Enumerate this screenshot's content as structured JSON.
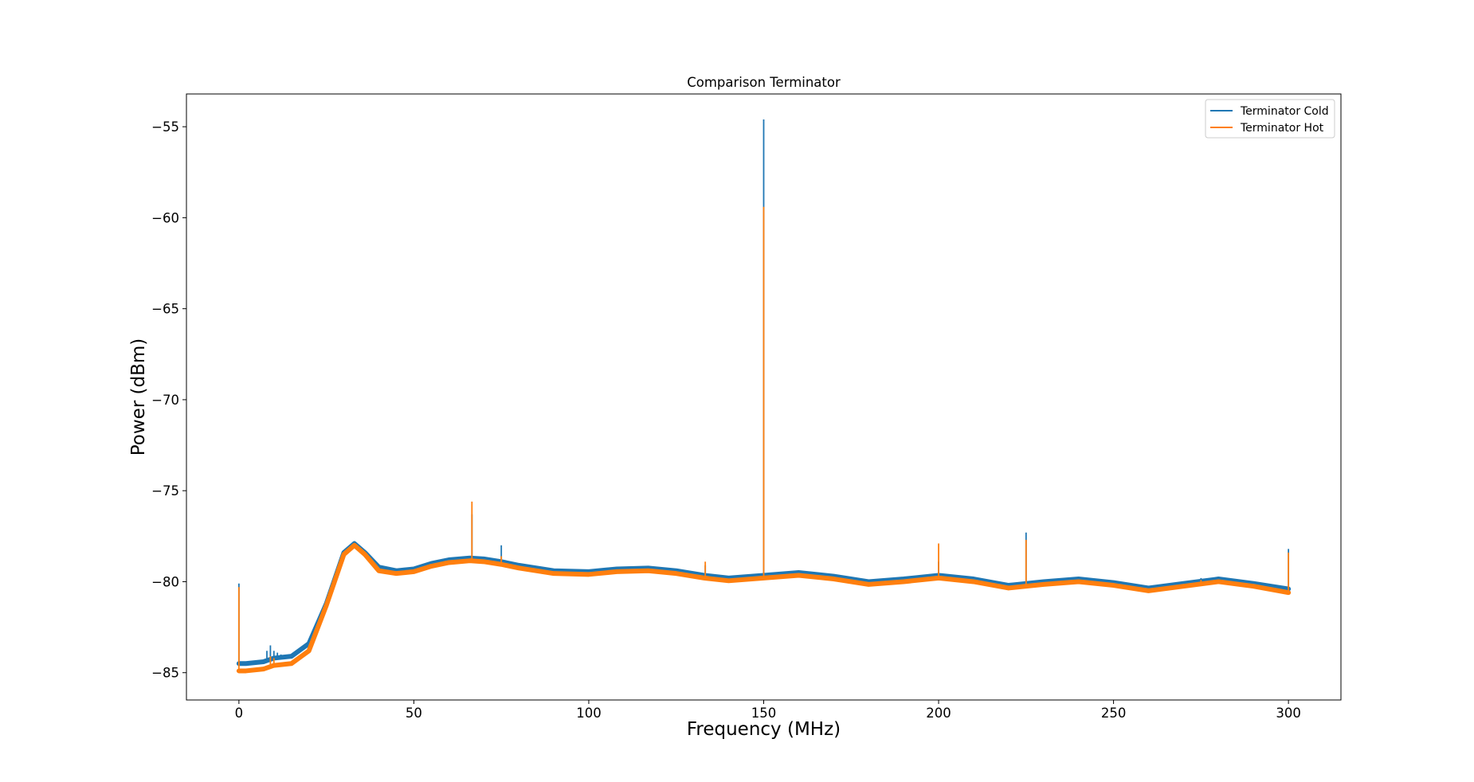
{
  "chart_data": {
    "type": "line",
    "title": "Comparison Terminator",
    "xlabel": "Frequency (MHz)",
    "ylabel": "Power (dBm)",
    "xlim": [
      -15,
      315
    ],
    "ylim": [
      -86.5,
      -53.2
    ],
    "xticks": [
      0,
      50,
      100,
      150,
      200,
      250,
      300
    ],
    "xtick_labels": [
      "0",
      "50",
      "100",
      "150",
      "200",
      "250",
      "300"
    ],
    "yticks": [
      -55,
      -60,
      -65,
      -70,
      -75,
      -80,
      -85
    ],
    "ytick_labels": [
      "−55",
      "−60",
      "−65",
      "−70",
      "−75",
      "−80",
      "−85"
    ],
    "grid": false,
    "legend_position": "top-right",
    "series": [
      {
        "name": "Terminator Cold",
        "color": "#1f77b4",
        "baseline": {
          "x": [
            0,
            2,
            7,
            10,
            15,
            20,
            25,
            30,
            33,
            36,
            40,
            45,
            50,
            55,
            60,
            66,
            70,
            75,
            80,
            90,
            100,
            108,
            117,
            125,
            133,
            140,
            150,
            160,
            170,
            180,
            190,
            200,
            210,
            220,
            230,
            240,
            250,
            260,
            270,
            280,
            290,
            300
          ],
          "y": [
            -84.5,
            -84.5,
            -84.4,
            -84.2,
            -84.1,
            -83.4,
            -81.2,
            -78.4,
            -77.9,
            -78.4,
            -79.2,
            -79.4,
            -79.3,
            -79.0,
            -78.8,
            -78.7,
            -78.75,
            -78.9,
            -79.1,
            -79.4,
            -79.45,
            -79.3,
            -79.25,
            -79.4,
            -79.65,
            -79.8,
            -79.65,
            -79.5,
            -79.7,
            -80.0,
            -79.85,
            -79.65,
            -79.85,
            -80.2,
            -80.0,
            -79.85,
            -80.05,
            -80.35,
            -80.1,
            -79.85,
            -80.1,
            -80.4
          ]
        },
        "spikes": [
          {
            "x": 0,
            "y": -80.1
          },
          {
            "x": 8,
            "y": -83.8
          },
          {
            "x": 9,
            "y": -83.5
          },
          {
            "x": 10,
            "y": -83.8
          },
          {
            "x": 11,
            "y": -83.9
          },
          {
            "x": 12,
            "y": -84.0
          },
          {
            "x": 66.6,
            "y": -76.3
          },
          {
            "x": 75,
            "y": -78.0
          },
          {
            "x": 133.3,
            "y": -79.1
          },
          {
            "x": 150,
            "y": -54.6
          },
          {
            "x": 200,
            "y": -78.9
          },
          {
            "x": 225,
            "y": -77.3
          },
          {
            "x": 275,
            "y": -79.8
          },
          {
            "x": 300,
            "y": -78.2
          }
        ]
      },
      {
        "name": "Terminator Hot",
        "color": "#ff7f0e",
        "baseline": {
          "x": [
            0,
            2,
            7,
            10,
            15,
            20,
            25,
            30,
            33,
            36,
            40,
            45,
            50,
            55,
            60,
            66,
            70,
            75,
            80,
            90,
            100,
            108,
            117,
            125,
            133,
            140,
            150,
            160,
            170,
            180,
            190,
            200,
            210,
            220,
            230,
            240,
            250,
            260,
            270,
            280,
            290,
            300
          ],
          "y": [
            -84.9,
            -84.9,
            -84.8,
            -84.6,
            -84.5,
            -83.8,
            -81.3,
            -78.5,
            -78.0,
            -78.5,
            -79.4,
            -79.55,
            -79.45,
            -79.15,
            -78.95,
            -78.85,
            -78.9,
            -79.05,
            -79.25,
            -79.55,
            -79.6,
            -79.45,
            -79.4,
            -79.55,
            -79.8,
            -79.95,
            -79.8,
            -79.65,
            -79.85,
            -80.15,
            -80.0,
            -79.8,
            -80.0,
            -80.35,
            -80.15,
            -80.0,
            -80.2,
            -80.5,
            -80.25,
            -80.0,
            -80.25,
            -80.6
          ]
        },
        "spikes": [
          {
            "x": 0,
            "y": -80.3
          },
          {
            "x": 9,
            "y": -84.1
          },
          {
            "x": 10,
            "y": -84.2
          },
          {
            "x": 66.6,
            "y": -75.6
          },
          {
            "x": 75,
            "y": -78.6
          },
          {
            "x": 133.3,
            "y": -78.9
          },
          {
            "x": 150,
            "y": -59.4
          },
          {
            "x": 200,
            "y": -77.9
          },
          {
            "x": 225,
            "y": -77.7
          },
          {
            "x": 275,
            "y": -79.9
          },
          {
            "x": 300,
            "y": -78.4
          }
        ]
      }
    ]
  }
}
